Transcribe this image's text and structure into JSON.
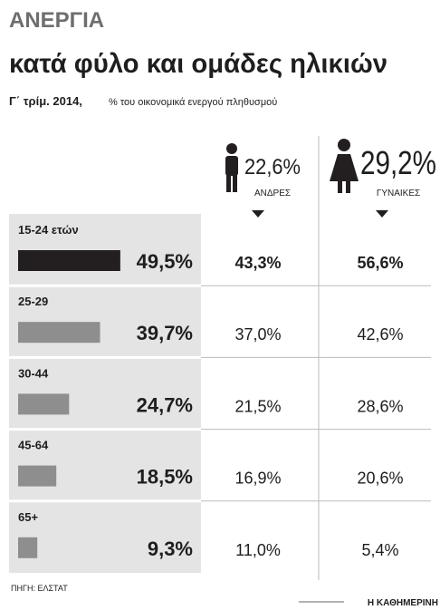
{
  "chart_data": {
    "type": "bar",
    "title": "ΑΝΕΡΓΙΑ",
    "subtitle": "κατά φύλο και ομάδες ηλικιών",
    "period": "Γ΄ τρίμ. 2014,",
    "note": "% του οικονομικά ενεργού πληθυσμού",
    "categories": [
      "15-24 ετών",
      "25-29",
      "30-44",
      "45-64",
      "65+"
    ],
    "series": [
      {
        "values": [
          49.5,
          39.7,
          24.7,
          18.5,
          9.3
        ],
        "value_labels": [
          "49,5%",
          "39,7%",
          "24,7%",
          "18,5%",
          "9,3%"
        ],
        "colors": [
          "#231f20",
          "#8e8e8e",
          "#8e8e8e",
          "#8e8e8e",
          "#8e8e8e"
        ]
      },
      {
        "name": "ΑΝΔΡΕΣ",
        "total": 22.6,
        "total_label": "22,6%",
        "values": [
          43.3,
          37.0,
          21.5,
          16.9,
          11.0
        ],
        "value_labels": [
          "43,3%",
          "37,0%",
          "21,5%",
          "16,9%",
          "11,0%"
        ]
      },
      {
        "name": "ΓΥΝΑΙΚΕΣ",
        "total": 29.2,
        "total_label": "29,2%",
        "values": [
          56.6,
          42.6,
          28.6,
          20.6,
          5.4
        ],
        "value_labels": [
          "56,6%",
          "42,6%",
          "28,6%",
          "20,6%",
          "5,4%"
        ]
      }
    ],
    "source": "ΠΗΓΗ: ΕΛΣΤΑΤ",
    "publisher": "Η ΚΑΘΗΜΕΡΙΝΗ"
  }
}
